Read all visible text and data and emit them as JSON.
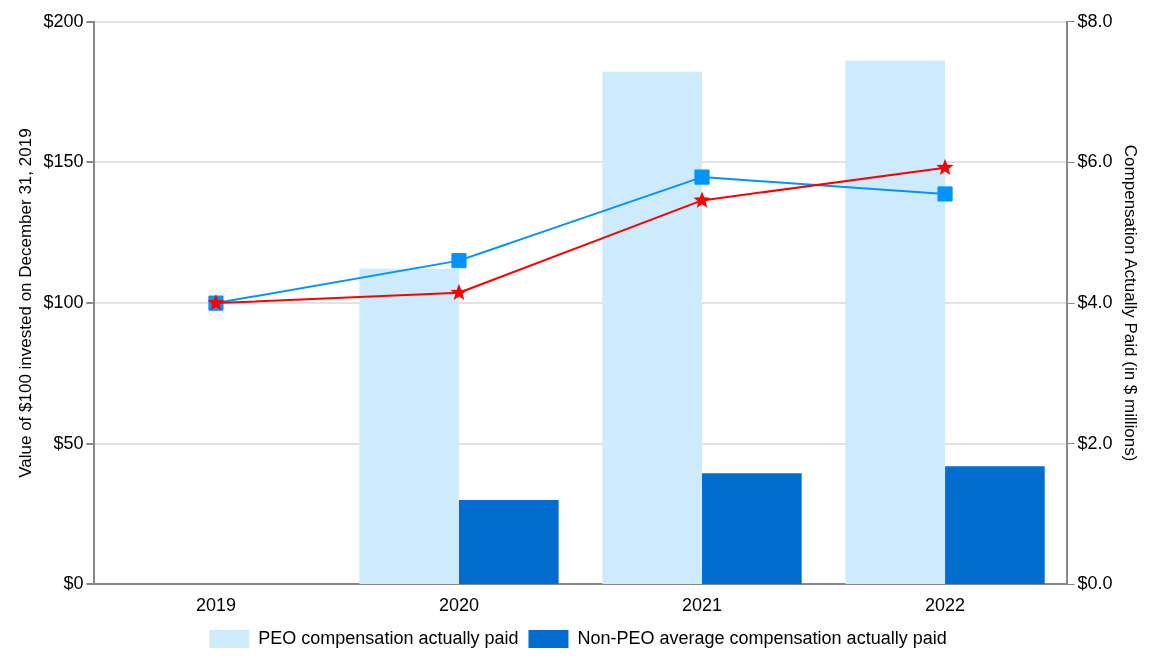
{
  "chart_data": {
    "type": "bar",
    "ylabel": "Value of $100 invested on December 31, 2019",
    "y2label": "Compensation Actually Paid (in $ millions)",
    "categories": [
      "2019",
      "2020",
      "2021",
      "2022"
    ],
    "series": [
      {
        "name": "PEO compensation actually paid",
        "axis": "y2",
        "color": "#cdebfc",
        "values": [
          null,
          4.49,
          7.29,
          7.45
        ]
      },
      {
        "name": "Non-PEO average compensation actually paid",
        "axis": "y2",
        "color": "#026ccf",
        "values": [
          null,
          1.2,
          1.58,
          1.68
        ]
      },
      {
        "type": "line",
        "marker": "star",
        "color": "#ff0000",
        "values": [
          100,
          103.7,
          136.5,
          148.1
        ]
      },
      {
        "type": "line",
        "marker": "square",
        "color": "#0095fe",
        "values": [
          100,
          115.1,
          144.8,
          138.8
        ]
      }
    ],
    "ylim": [
      0,
      200
    ],
    "yticks": [
      {
        "value": 0,
        "label": "$0"
      },
      {
        "value": 50,
        "label": "$50"
      },
      {
        "value": 100,
        "label": "$100"
      },
      {
        "value": 150,
        "label": "$150"
      },
      {
        "value": 200,
        "label": "$200"
      }
    ],
    "y2lim": [
      0,
      8
    ],
    "y2ticks": [
      {
        "value": 0,
        "label": "$0.0"
      },
      {
        "value": 2,
        "label": "$2.0"
      },
      {
        "value": 4,
        "label": "$4.0"
      },
      {
        "value": 6,
        "label": "$6.0"
      },
      {
        "value": 8,
        "label": "$8.0"
      }
    ],
    "grid": "y",
    "legend": "bottom"
  }
}
